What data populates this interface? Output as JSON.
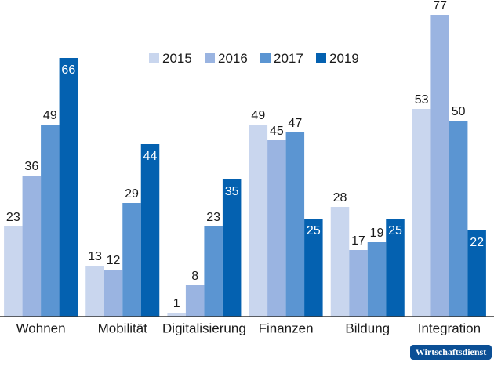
{
  "chart_data": {
    "type": "bar",
    "categories": [
      "Wohnen",
      "Mobilität",
      "Digitalisierung",
      "Finanzen",
      "Bildung",
      "Integration"
    ],
    "series": [
      {
        "name": "2015",
        "color": "#c9d6ee",
        "values": [
          23,
          13,
          1,
          49,
          28,
          53
        ]
      },
      {
        "name": "2016",
        "color": "#9ab4e1",
        "values": [
          36,
          12,
          8,
          45,
          17,
          77
        ]
      },
      {
        "name": "2017",
        "color": "#5b95d2",
        "values": [
          49,
          29,
          23,
          47,
          19,
          50
        ]
      },
      {
        "name": "2019",
        "color": "#0461b0",
        "values": [
          66,
          44,
          35,
          25,
          25,
          22
        ]
      }
    ],
    "ylim": [
      0,
      80
    ],
    "legend": "top",
    "watermark": "Wirtschaftsdienst"
  }
}
